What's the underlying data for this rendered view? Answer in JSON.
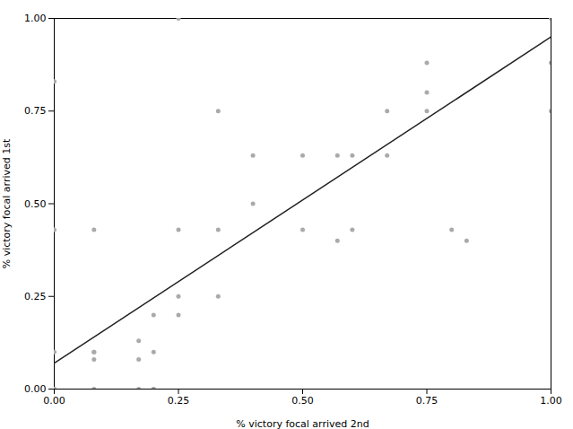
{
  "chart_data": {
    "type": "scatter",
    "xlabel": "% victory focal arrived 2nd",
    "ylabel": "% victory focal arrived 1st",
    "xlim": [
      0.0,
      1.0
    ],
    "ylim": [
      0.0,
      1.0
    ],
    "xticks": [
      {
        "value": 0.0,
        "label": "0.00"
      },
      0.25,
      {
        "value": 0.5,
        "label": "0.50"
      },
      0.75,
      {
        "value": 1.0,
        "label": "1.00"
      }
    ],
    "yticks": [
      {
        "value": 0.0,
        "label": "0.00"
      },
      0.25,
      {
        "value": 0.5,
        "label": "0.50"
      },
      0.75,
      {
        "value": 1.0,
        "label": "1.00"
      }
    ],
    "grid": false,
    "series": [
      {
        "type": "scatter",
        "color": "#aaaaaa",
        "x": [
          0.0,
          0.0,
          0.0,
          0.0,
          0.0,
          0.08,
          0.08,
          0.08,
          0.08,
          0.08,
          0.17,
          0.17,
          0.17,
          0.2,
          0.2,
          0.2,
          0.2,
          0.25,
          0.25,
          0.25,
          0.25,
          0.33,
          0.33,
          0.33,
          0.4,
          0.4,
          0.5,
          0.5,
          0.57,
          0.57,
          0.6,
          0.6,
          0.67,
          0.67,
          0.75,
          0.75,
          0.75,
          0.8,
          0.83,
          1.0,
          1.0,
          1.0
        ],
        "values": [
          0.0,
          0.0,
          0.1,
          0.43,
          0.83,
          0.0,
          0.08,
          0.1,
          0.1,
          0.43,
          0.0,
          0.08,
          0.13,
          0.0,
          0.0,
          0.1,
          0.2,
          0.2,
          0.25,
          0.43,
          1.0,
          0.25,
          0.43,
          0.75,
          0.5,
          0.63,
          0.43,
          0.63,
          0.4,
          0.63,
          0.43,
          0.63,
          0.63,
          0.75,
          0.75,
          0.8,
          0.88,
          0.43,
          0.4,
          0.75,
          1.0,
          0.88
        ]
      },
      {
        "type": "line",
        "color": "#222222",
        "x": [
          0.0,
          1.0
        ],
        "values": [
          0.07,
          0.95
        ]
      }
    ]
  }
}
